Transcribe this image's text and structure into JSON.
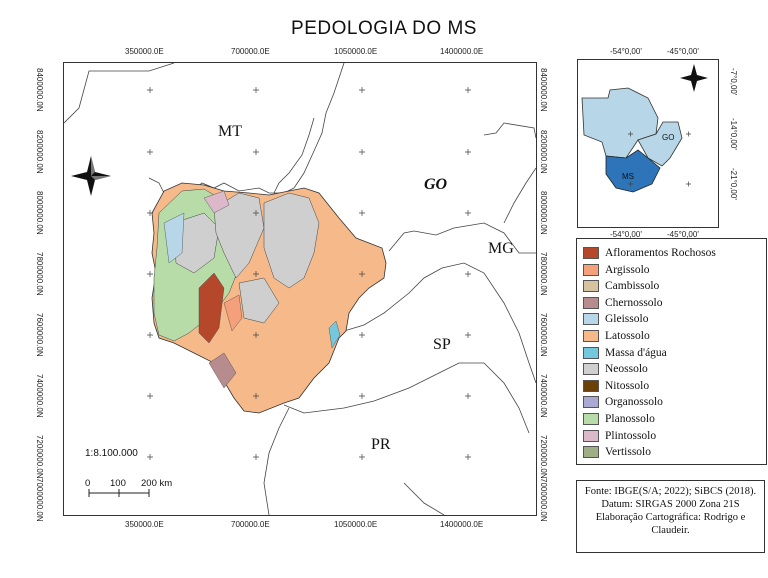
{
  "title": "PEDOLOGIA DO MS",
  "top_ticks": [
    "350000.0E",
    "700000.0E",
    "1050000.0E",
    "1400000.0E"
  ],
  "bottom_ticks": [
    "350000.0E",
    "700000.0E",
    "1050000.0E",
    "1400000.0E"
  ],
  "left_ticks": [
    "8400000.0N",
    "8200000.0N",
    "8000000.0N",
    "7800000.0N",
    "7600000.0N",
    "7400000.0N",
    "7200000.0N",
    "7000000.0N"
  ],
  "right_ticks": [
    "8400000.0N",
    "8200000.0N",
    "8000000.0N",
    "7800000.0N",
    "7600000.0N",
    "7400000.0N",
    "7200000.0N",
    "7000000.0N"
  ],
  "states": {
    "mt": "MT",
    "go": "GO",
    "mg": "MG",
    "sp": "SP",
    "pr": "PR"
  },
  "scale": {
    "ratio": "1:8.100.000",
    "labels": [
      "0",
      "100",
      "200 km"
    ]
  },
  "inset": {
    "top_ticks": [
      "-54°0,00'",
      "-45°0,00'"
    ],
    "bottom_ticks": [
      "-54°0,00'",
      "-45°0,00'"
    ],
    "right_ticks": [
      "-7°0,00'",
      "-14°0,00'",
      "-21°0,00'"
    ],
    "labels": {
      "go": "GO",
      "ms": "MS"
    }
  },
  "legend": [
    {
      "label": "Afloramentos Rochosos",
      "color": "#b5472a"
    },
    {
      "label": "Argissolo",
      "color": "#f4a07a"
    },
    {
      "label": "Cambissolo",
      "color": "#d8c3a0"
    },
    {
      "label": "Chernossolo",
      "color": "#b78c8f"
    },
    {
      "label": "Gleissolo",
      "color": "#b7d6e8"
    },
    {
      "label": "Latossolo",
      "color": "#f5b98a"
    },
    {
      "label": "Massa d'água",
      "color": "#73c8de"
    },
    {
      "label": "Neossolo",
      "color": "#cfcfcf"
    },
    {
      "label": "Nitossolo",
      "color": "#6b4108"
    },
    {
      "label": "Organossolo",
      "color": "#a9a9d4"
    },
    {
      "label": "Planossolo",
      "color": "#b8dca8"
    },
    {
      "label": "Plintossolo",
      "color": "#dcb9c9"
    },
    {
      "label": "Vertissolo",
      "color": "#9fae84"
    }
  ],
  "source_lines": [
    "Fonte: IBGE(S/A; 2022); SiBCS (2018).",
    "Datum: SIRGAS 2000 Zona 21S",
    "Elaboração Cartográfica: Rodrigo e",
    "Claudeir."
  ]
}
